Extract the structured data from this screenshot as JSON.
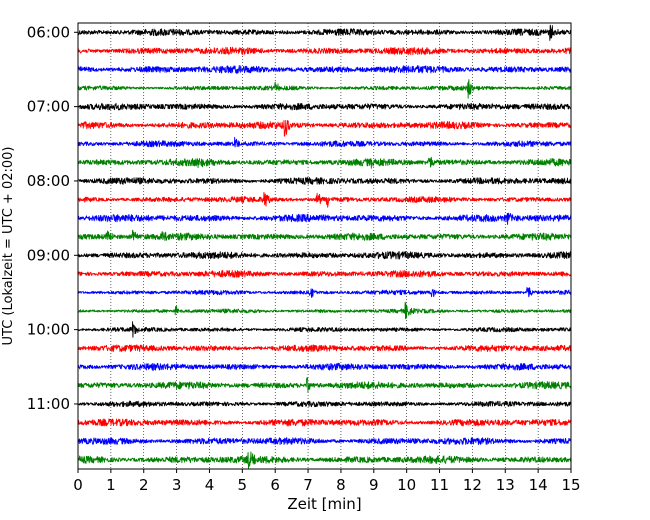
{
  "chart_data": {
    "type": "line",
    "title": "",
    "xlabel": "Zeit  [min]",
    "ylabel": "UTC (Lokalzeit = UTC + 02:00)",
    "xlim": [
      0,
      15
    ],
    "xticks": [
      0,
      1,
      2,
      3,
      4,
      5,
      6,
      7,
      8,
      9,
      10,
      11,
      12,
      13,
      14,
      15
    ],
    "x_grid": true,
    "y_grid": false,
    "minutes_per_trace": 15,
    "ytick_labels": [
      "06:00",
      "07:00",
      "08:00",
      "09:00",
      "10:00",
      "11:00"
    ],
    "colors": [
      "#000000",
      "#ff0000",
      "#0000ff",
      "#008000"
    ],
    "traces": [
      {
        "start": "06:00",
        "color": "#000000",
        "noise": 0.5,
        "events": [
          {
            "t": 14.4,
            "amp": 1.2
          }
        ]
      },
      {
        "start": "06:15",
        "color": "#ff0000",
        "noise": 0.55,
        "events": []
      },
      {
        "start": "06:30",
        "color": "#0000ff",
        "noise": 0.6,
        "events": []
      },
      {
        "start": "06:45",
        "color": "#008000",
        "noise": 0.25,
        "events": [
          {
            "t": 6.0,
            "amp": 0.8
          },
          {
            "t": 11.9,
            "amp": 1.3
          }
        ]
      },
      {
        "start": "07:00",
        "color": "#000000",
        "noise": 0.5,
        "events": []
      },
      {
        "start": "07:15",
        "color": "#ff0000",
        "noise": 0.55,
        "events": [
          {
            "t": 6.3,
            "amp": 1.8
          }
        ]
      },
      {
        "start": "07:30",
        "color": "#0000ff",
        "noise": 0.4,
        "events": [
          {
            "t": 4.8,
            "amp": 0.8
          }
        ]
      },
      {
        "start": "07:45",
        "color": "#008000",
        "noise": 0.55,
        "events": [
          {
            "t": 3.7,
            "amp": 0.7
          },
          {
            "t": 8.9,
            "amp": 0.6
          },
          {
            "t": 10.7,
            "amp": 1.2
          }
        ]
      },
      {
        "start": "08:00",
        "color": "#000000",
        "noise": 0.5,
        "events": []
      },
      {
        "start": "08:15",
        "color": "#ff0000",
        "noise": 0.4,
        "events": [
          {
            "t": 5.7,
            "amp": 1.3
          },
          {
            "t": 7.3,
            "amp": 1.1
          },
          {
            "t": 7.6,
            "amp": 1.0
          }
        ]
      },
      {
        "start": "08:30",
        "color": "#0000ff",
        "noise": 0.6,
        "events": [
          {
            "t": 13.1,
            "amp": 0.8
          }
        ]
      },
      {
        "start": "08:45",
        "color": "#008000",
        "noise": 0.55,
        "events": [
          {
            "t": 0.9,
            "amp": 1.2
          },
          {
            "t": 1.7,
            "amp": 1.0
          },
          {
            "t": 2.6,
            "amp": 0.8
          }
        ]
      },
      {
        "start": "09:00",
        "color": "#000000",
        "noise": 0.55,
        "events": []
      },
      {
        "start": "09:15",
        "color": "#ff0000",
        "noise": 0.5,
        "events": []
      },
      {
        "start": "09:30",
        "color": "#0000ff",
        "noise": 0.25,
        "events": [
          {
            "t": 7.1,
            "amp": 0.8
          },
          {
            "t": 10.8,
            "amp": 0.6
          },
          {
            "t": 13.7,
            "amp": 1.2
          }
        ]
      },
      {
        "start": "09:45",
        "color": "#008000",
        "noise": 0.2,
        "events": [
          {
            "t": 3.0,
            "amp": 0.7
          },
          {
            "t": 10.0,
            "amp": 1.1
          }
        ]
      },
      {
        "start": "10:00",
        "color": "#000000",
        "noise": 0.25,
        "events": [
          {
            "t": 1.7,
            "amp": 1.3
          }
        ]
      },
      {
        "start": "10:15",
        "color": "#ff0000",
        "noise": 0.5,
        "events": []
      },
      {
        "start": "10:30",
        "color": "#0000ff",
        "noise": 0.5,
        "events": []
      },
      {
        "start": "10:45",
        "color": "#008000",
        "noise": 0.55,
        "events": [
          {
            "t": 7.0,
            "amp": 1.0
          }
        ]
      },
      {
        "start": "11:00",
        "color": "#000000",
        "noise": 0.35,
        "events": []
      },
      {
        "start": "11:15",
        "color": "#ff0000",
        "noise": 0.55,
        "events": []
      },
      {
        "start": "11:30",
        "color": "#0000ff",
        "noise": 0.55,
        "events": []
      },
      {
        "start": "11:45",
        "color": "#008000",
        "noise": 0.6,
        "events": [
          {
            "t": 5.2,
            "amp": 1.3
          }
        ]
      }
    ]
  }
}
